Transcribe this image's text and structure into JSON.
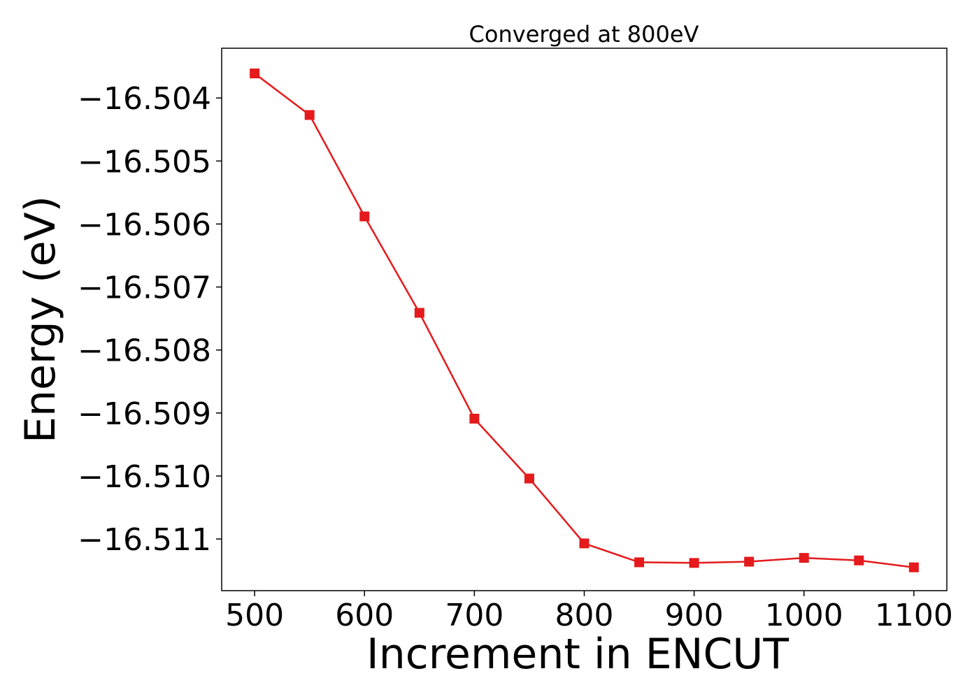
{
  "chart_data": {
    "type": "line",
    "title": "Converged at 800eV",
    "xlabel": "Increment in ENCUT",
    "ylabel": "Energy (eV)",
    "xlim": [
      470,
      1130
    ],
    "ylim": [
      -16.51182,
      -16.50321
    ],
    "xticks": [
      500,
      600,
      700,
      800,
      900,
      1000,
      1100
    ],
    "xtick_labels": [
      "500",
      "600",
      "700",
      "800",
      "900",
      "1000",
      "1100"
    ],
    "yticks": [
      -16.504,
      -16.505,
      -16.506,
      -16.507,
      -16.508,
      -16.509,
      -16.51,
      -16.511
    ],
    "ytick_labels": [
      "−16.504",
      "−16.505",
      "−16.506",
      "−16.507",
      "−16.508",
      "−16.509",
      "−16.510",
      "−16.511"
    ],
    "grid": false,
    "series": [
      {
        "color": "#e41a1c",
        "marker": "square",
        "x": [
          500,
          550,
          600,
          650,
          700,
          750,
          800,
          850,
          900,
          950,
          1000,
          1050,
          1100
        ],
        "y": [
          -16.50361,
          -16.50427,
          -16.50588,
          -16.50741,
          -16.50909,
          -16.51004,
          -16.51107,
          -16.51137,
          -16.51138,
          -16.51136,
          -16.5113,
          -16.51134,
          -16.51145
        ]
      }
    ]
  }
}
